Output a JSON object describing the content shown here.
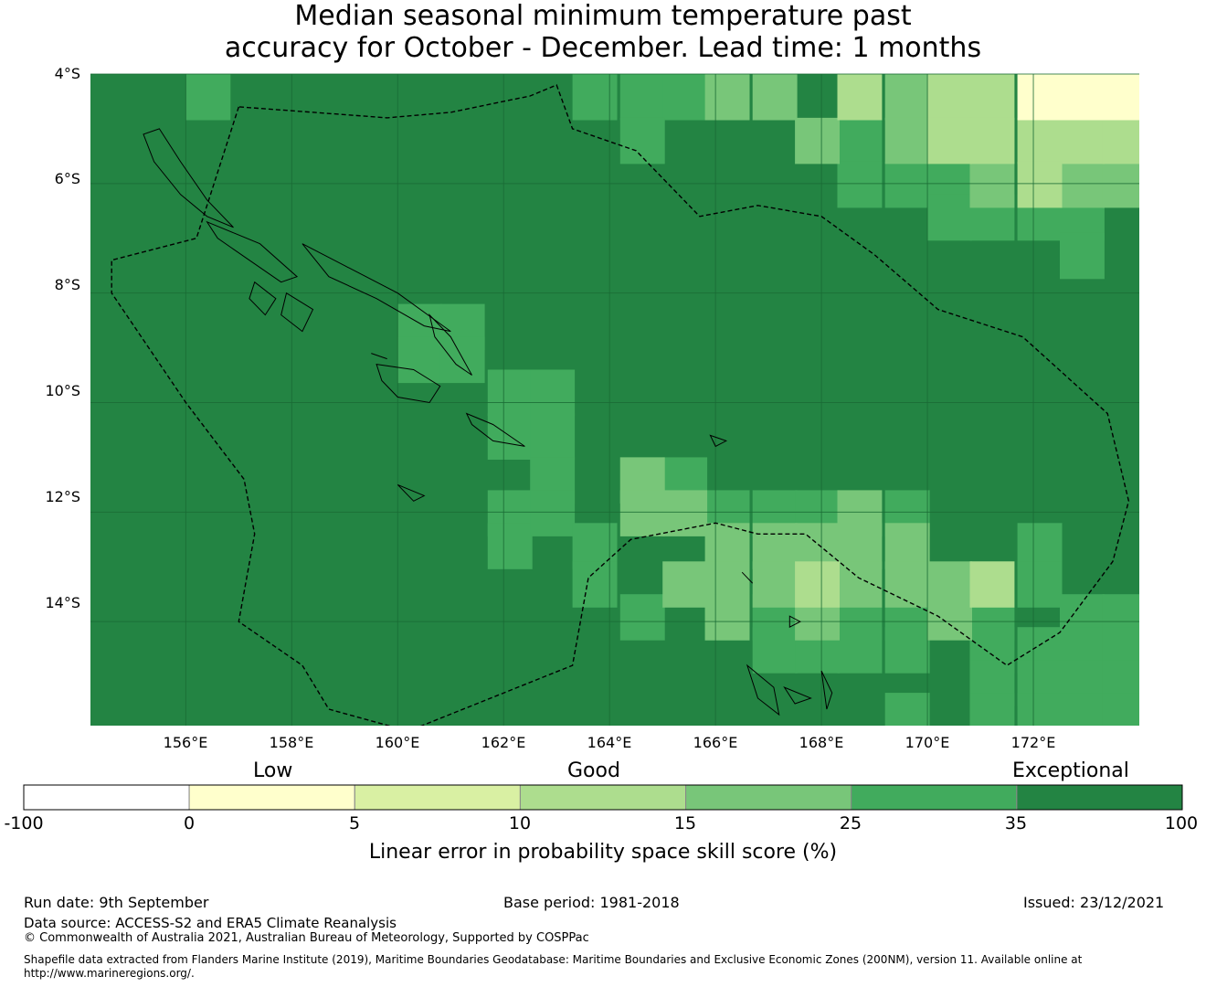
{
  "title": {
    "line1": "Median seasonal minimum temperature past",
    "line2": "accuracy for October - December. Lead time: 1 months"
  },
  "map": {
    "lon_range": [
      154.2,
      174.0
    ],
    "lat_range": [
      -15.9,
      -4.0
    ],
    "cell_size_deg": 0.833,
    "lat_ticks": [
      "4°S",
      "6°S",
      "8°S",
      "10°S",
      "12°S",
      "14°S"
    ],
    "lon_ticks": [
      "156°E",
      "158°E",
      "160°E",
      "162°E",
      "164°E",
      "166°E",
      "168°E",
      "170°E",
      "172°E"
    ],
    "background_color": "#238443",
    "patches": [
      {
        "color": "#41ab5d",
        "cells": [
          [
            156.0,
            -4.0
          ],
          [
            163.3,
            -4.0
          ],
          [
            164.2,
            -4.0
          ],
          [
            165.0,
            -4.0
          ],
          [
            164.2,
            -4.8
          ],
          [
            168.3,
            -4.8
          ],
          [
            168.3,
            -5.6
          ],
          [
            169.2,
            -5.6
          ],
          [
            170.0,
            -5.6
          ],
          [
            170.0,
            -6.2
          ],
          [
            170.8,
            -6.2
          ],
          [
            171.7,
            -6.2
          ],
          [
            172.5,
            -5.6
          ],
          [
            172.5,
            -6.2
          ],
          [
            172.5,
            -6.9
          ],
          [
            161.7,
            -9.4
          ],
          [
            162.5,
            -9.4
          ],
          [
            161.7,
            -10.2
          ],
          [
            162.5,
            -10.2
          ],
          [
            162.5,
            -11.0
          ],
          [
            161.7,
            -11.6
          ],
          [
            161.7,
            -12.2
          ],
          [
            162.5,
            -11.6
          ],
          [
            163.3,
            -12.2
          ],
          [
            163.3,
            -12.9
          ],
          [
            164.2,
            -11.0
          ],
          [
            165.0,
            -11.0
          ],
          [
            165.8,
            -11.6
          ],
          [
            166.7,
            -11.6
          ],
          [
            167.5,
            -11.6
          ],
          [
            169.2,
            -11.6
          ],
          [
            164.2,
            -13.5
          ],
          [
            165.8,
            -13.5
          ],
          [
            166.7,
            -13.5
          ],
          [
            167.5,
            -13.5
          ],
          [
            168.3,
            -13.5
          ],
          [
            169.2,
            -13.5
          ],
          [
            170.8,
            -12.9
          ],
          [
            171.7,
            -12.2
          ],
          [
            171.7,
            -12.9
          ],
          [
            170.8,
            -13.5
          ],
          [
            170.8,
            -14.1
          ],
          [
            171.7,
            -14.1
          ],
          [
            172.5,
            -13.5
          ],
          [
            172.5,
            -14.1
          ],
          [
            173.3,
            -13.5
          ],
          [
            173.3,
            -14.1
          ],
          [
            166.7,
            -14.1
          ],
          [
            167.5,
            -14.1
          ],
          [
            168.3,
            -14.1
          ],
          [
            169.2,
            -14.1
          ],
          [
            170.8,
            -14.7
          ],
          [
            171.7,
            -14.7
          ],
          [
            172.5,
            -14.7
          ],
          [
            173.3,
            -14.7
          ],
          [
            169.2,
            -15.3
          ],
          [
            170.8,
            -15.3
          ],
          [
            171.7,
            -15.3
          ],
          [
            172.5,
            -15.3
          ],
          [
            173.3,
            -15.3
          ],
          [
            171.7,
            -15.9
          ],
          [
            172.5,
            -15.9
          ],
          [
            160.0,
            -8.2
          ],
          [
            160.8,
            -8.2
          ],
          [
            160.0,
            -8.8
          ],
          [
            160.8,
            -8.8
          ]
        ]
      },
      {
        "color": "#78c679",
        "cells": [
          [
            165.8,
            -4.0
          ],
          [
            166.7,
            -4.0
          ],
          [
            167.5,
            -4.8
          ],
          [
            169.2,
            -4.0
          ],
          [
            169.2,
            -4.8
          ],
          [
            170.8,
            -4.8
          ],
          [
            170.8,
            -5.6
          ],
          [
            172.5,
            -5.6
          ],
          [
            173.3,
            -5.6
          ],
          [
            164.2,
            -11.0
          ],
          [
            164.2,
            -11.6
          ],
          [
            165.0,
            -11.6
          ],
          [
            165.8,
            -12.2
          ],
          [
            166.7,
            -12.2
          ],
          [
            167.5,
            -12.2
          ],
          [
            168.3,
            -12.2
          ],
          [
            169.2,
            -12.2
          ],
          [
            170.0,
            -12.9
          ],
          [
            170.0,
            -13.5
          ],
          [
            168.3,
            -11.6
          ],
          [
            165.0,
            -12.9
          ],
          [
            165.8,
            -12.9
          ],
          [
            166.7,
            -12.9
          ],
          [
            167.5,
            -12.9
          ],
          [
            168.3,
            -12.9
          ],
          [
            169.2,
            -12.9
          ],
          [
            165.8,
            -13.5
          ],
          [
            167.5,
            -13.5
          ]
        ]
      },
      {
        "color": "#addd8e",
        "cells": [
          [
            168.3,
            -4.0
          ],
          [
            170.0,
            -4.0
          ],
          [
            170.8,
            -4.0
          ],
          [
            170.0,
            -4.8
          ],
          [
            170.8,
            -4.8
          ],
          [
            171.7,
            -4.8
          ],
          [
            172.5,
            -4.8
          ],
          [
            173.3,
            -4.8
          ],
          [
            171.7,
            -5.6
          ],
          [
            170.8,
            -12.9
          ],
          [
            167.5,
            -12.9
          ]
        ]
      },
      {
        "color": "#ffffcc",
        "cells": [
          [
            171.7,
            -4.0
          ],
          [
            172.5,
            -4.0
          ],
          [
            173.3,
            -4.0
          ]
        ]
      }
    ]
  },
  "colorbar": {
    "category_labels": [
      "Low",
      "Good",
      "Exceptional"
    ],
    "bins": [
      {
        "color": "#ffffff"
      },
      {
        "color": "#ffffcc"
      },
      {
        "color": "#d9f0a3"
      },
      {
        "color": "#addd8e"
      },
      {
        "color": "#78c679"
      },
      {
        "color": "#41ab5d"
      },
      {
        "color": "#238443"
      }
    ],
    "tick_labels": [
      "-100",
      "0",
      "5",
      "10",
      "15",
      "25",
      "35",
      "100"
    ],
    "title": "Linear error in probability space skill score (%)"
  },
  "footer": {
    "run_date": "Run date: 9th September",
    "base_period": "Base period: 1981-2018",
    "issued": "Issued: 23/12/2021",
    "data_source": "Data source: ACCESS-S2 and ERA5 Climate Reanalysis",
    "copyright": "© Commonwealth of Australia 2021, Australian Bureau of Meteorology, Supported by COSPPac",
    "shapefile": "Shapefile data extracted from Flanders Marine Institute (2019), Maritime Boundaries Geodatabase: Maritime Boundaries and Exclusive Economic Zones (200NM), version 11. Available online at http://www.marineregions.org/."
  }
}
